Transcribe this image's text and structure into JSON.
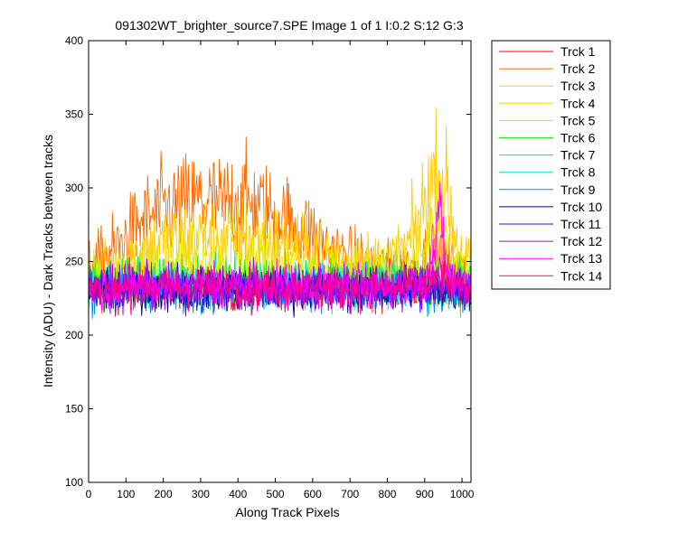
{
  "chart_data": {
    "type": "line",
    "title": "091302WT_brighter_source7.SPE  Image 1 of 1  I:0.2  S:12  G:3",
    "xlabel": "Along Track Pixels",
    "ylabel": "Intensity (ADU) - Dark Tracks between tracks",
    "xlim": [
      0,
      1024
    ],
    "ylim": [
      100,
      400
    ],
    "xticks": [
      0,
      100,
      200,
      300,
      400,
      500,
      600,
      700,
      800,
      900,
      1000
    ],
    "yticks": [
      100,
      150,
      200,
      250,
      300,
      350,
      400
    ],
    "grid": false,
    "legend_position": "outside-top-right",
    "x": [
      0,
      50,
      100,
      150,
      200,
      250,
      300,
      350,
      400,
      450,
      500,
      550,
      600,
      650,
      700,
      750,
      800,
      850,
      880,
      900,
      920,
      940,
      960,
      980,
      1000,
      1024
    ],
    "series": [
      {
        "name": "Trck 1",
        "color": "#ff0000",
        "values": [
          233,
          232,
          233,
          232,
          233,
          232,
          233,
          232,
          233,
          232,
          233,
          232,
          233,
          232,
          233,
          232,
          233,
          232,
          233,
          232,
          233,
          232,
          233,
          232,
          233,
          232
        ]
      },
      {
        "name": "Trck 2",
        "color": "#ff6a00",
        "values": [
          245,
          255,
          265,
          278,
          285,
          288,
          292,
          288,
          292,
          288,
          282,
          275,
          268,
          258,
          252,
          248,
          245,
          245,
          248,
          252,
          258,
          255,
          250,
          245,
          242,
          240
        ]
      },
      {
        "name": "Trck 3",
        "color": "#ffcc00",
        "values": [
          240,
          245,
          250,
          258,
          262,
          265,
          268,
          266,
          268,
          266,
          264,
          260,
          258,
          255,
          252,
          250,
          250,
          258,
          275,
          290,
          305,
          310,
          295,
          270,
          255,
          250
        ]
      },
      {
        "name": "Trck 4",
        "color": "#e6e600",
        "values": [
          238,
          240,
          244,
          248,
          250,
          252,
          254,
          252,
          254,
          252,
          250,
          248,
          246,
          244,
          243,
          242,
          242,
          246,
          252,
          262,
          270,
          272,
          264,
          252,
          246,
          244
        ]
      },
      {
        "name": "Trck 5",
        "color": "#99ff00",
        "values": [
          236,
          236,
          237,
          237,
          238,
          238,
          238,
          238,
          238,
          238,
          237,
          237,
          236,
          236,
          236,
          236,
          235,
          235,
          236,
          237,
          238,
          238,
          237,
          236,
          236,
          236
        ]
      },
      {
        "name": "Trck 6",
        "color": "#22ee22",
        "values": [
          236,
          235,
          236,
          235,
          236,
          235,
          236,
          235,
          236,
          235,
          236,
          235,
          236,
          235,
          236,
          235,
          236,
          235,
          236,
          235,
          236,
          235,
          236,
          235,
          236,
          235
        ]
      },
      {
        "name": "Trck 7",
        "color": "#00e89a",
        "values": [
          234,
          234,
          235,
          234,
          235,
          234,
          235,
          234,
          235,
          234,
          235,
          234,
          235,
          234,
          235,
          234,
          235,
          234,
          235,
          234,
          235,
          234,
          235,
          234,
          235,
          234
        ]
      },
      {
        "name": "Trck 8",
        "color": "#00e5e5",
        "values": [
          232,
          233,
          232,
          233,
          232,
          233,
          232,
          233,
          232,
          233,
          232,
          233,
          232,
          233,
          232,
          233,
          232,
          233,
          232,
          233,
          232,
          233,
          232,
          233,
          232,
          233
        ]
      },
      {
        "name": "Trck 9",
        "color": "#0088ff",
        "values": [
          230,
          231,
          230,
          231,
          230,
          231,
          230,
          231,
          230,
          231,
          230,
          231,
          230,
          231,
          230,
          231,
          230,
          231,
          230,
          231,
          230,
          231,
          230,
          231,
          230,
          231
        ]
      },
      {
        "name": "Trck 10",
        "color": "#00007a",
        "values": [
          230,
          230,
          231,
          230,
          231,
          230,
          231,
          230,
          231,
          230,
          231,
          230,
          231,
          230,
          231,
          230,
          231,
          230,
          231,
          230,
          231,
          230,
          231,
          230,
          231,
          230
        ]
      },
      {
        "name": "Trck 11",
        "color": "#3300ff",
        "values": [
          232,
          232,
          232,
          232,
          232,
          232,
          232,
          232,
          232,
          232,
          232,
          232,
          232,
          232,
          232,
          232,
          232,
          232,
          232,
          232,
          232,
          232,
          232,
          232,
          232,
          232
        ]
      },
      {
        "name": "Trck 12",
        "color": "#aa00ff",
        "values": [
          233,
          233,
          233,
          233,
          233,
          233,
          233,
          233,
          233,
          233,
          233,
          233,
          233,
          233,
          233,
          233,
          233,
          233,
          233,
          233,
          235,
          240,
          236,
          233,
          233,
          233
        ]
      },
      {
        "name": "Trck 13",
        "color": "#ff00ff",
        "values": [
          234,
          234,
          234,
          234,
          234,
          234,
          234,
          234,
          234,
          234,
          234,
          234,
          234,
          234,
          234,
          234,
          234,
          234,
          234,
          236,
          245,
          290,
          250,
          236,
          234,
          234
        ]
      },
      {
        "name": "Trck 14",
        "color": "#ff0088",
        "values": [
          232,
          232,
          232,
          232,
          232,
          232,
          232,
          232,
          232,
          232,
          232,
          232,
          232,
          232,
          232,
          232,
          232,
          232,
          232,
          232,
          234,
          238,
          234,
          232,
          232,
          232
        ]
      }
    ]
  }
}
